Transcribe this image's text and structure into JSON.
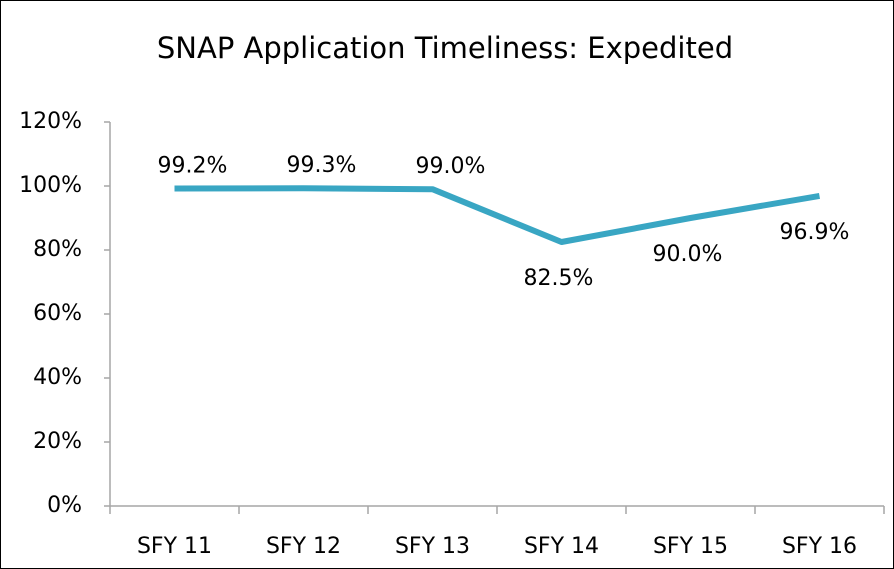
{
  "chart_data": {
    "type": "line",
    "title": "SNAP Application Timeliness: Expedited",
    "categories": [
      "SFY 11",
      "SFY 12",
      "SFY 13",
      "SFY 14",
      "SFY 15",
      "SFY 16"
    ],
    "series": [
      {
        "name": "Expedited",
        "color": "#39a6c3",
        "values": [
          99.2,
          99.3,
          99.0,
          82.5,
          90.0,
          96.9
        ],
        "value_labels": [
          "99.2%",
          "99.3%",
          "99.0%",
          "82.5%",
          "90.0%",
          "96.9%"
        ]
      }
    ],
    "ylim": [
      0,
      120
    ],
    "yticks": [
      {
        "value": 0,
        "label": "0%"
      },
      {
        "value": 20,
        "label": "20%"
      },
      {
        "value": 40,
        "label": "40%"
      },
      {
        "value": 60,
        "label": "60%"
      },
      {
        "value": 80,
        "label": "80%"
      },
      {
        "value": 100,
        "label": "100%"
      },
      {
        "value": 120,
        "label": "120%"
      }
    ],
    "grid": false
  }
}
